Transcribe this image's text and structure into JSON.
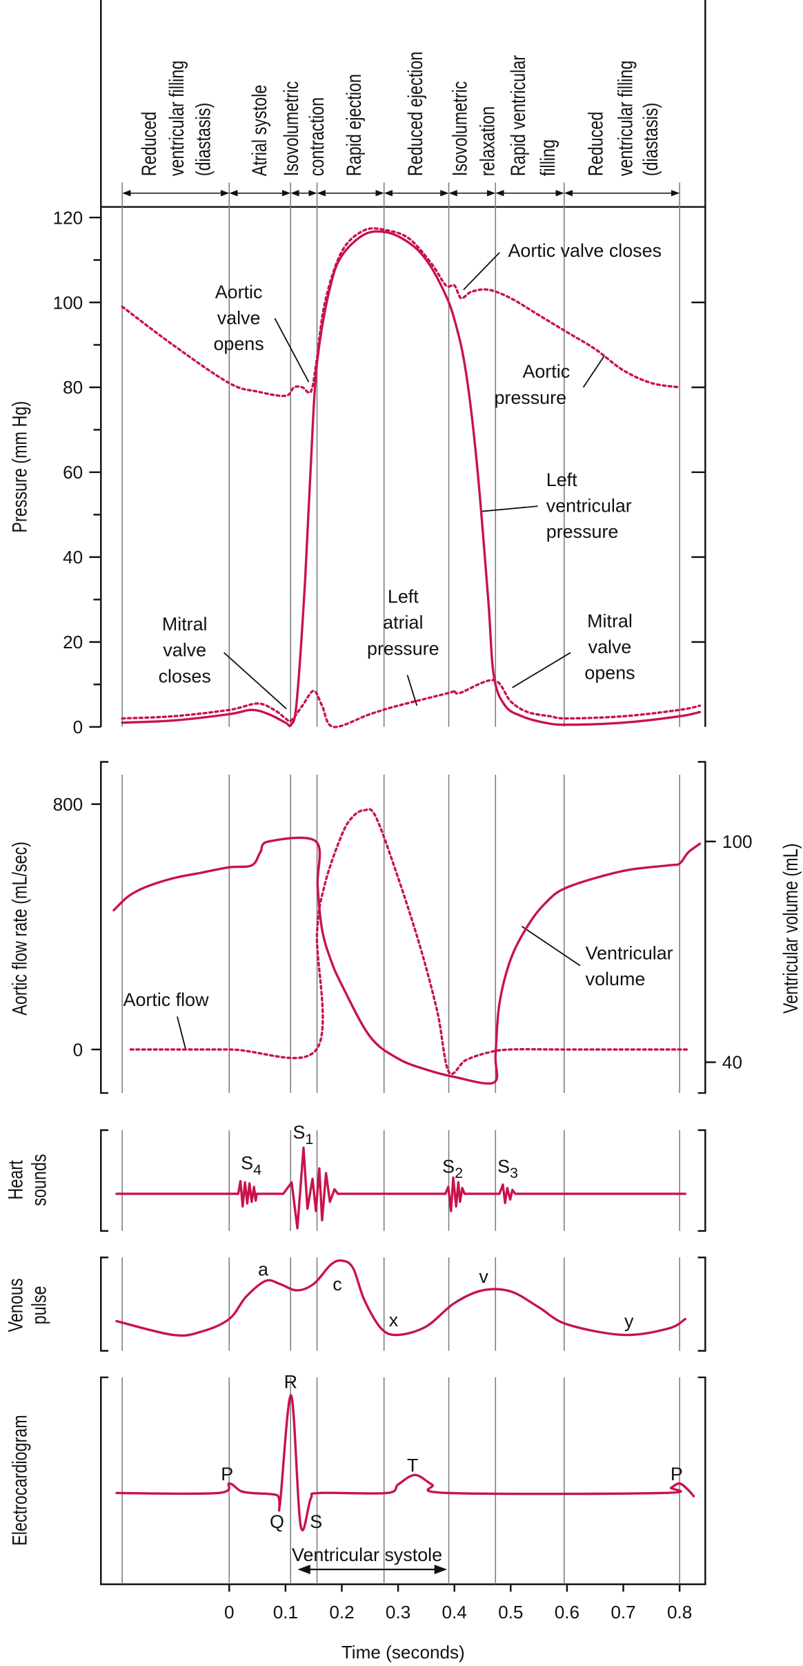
{
  "colors": {
    "trace": "#c8134b",
    "grid": "#7a7a7a",
    "axis": "#111111"
  },
  "phases": [
    {
      "lines": [
        "Reduced",
        "ventricular filling",
        "(diastasis)"
      ]
    },
    {
      "lines": [
        "Atrial systole"
      ]
    },
    {
      "lines": [
        "Isovolumetric",
        "contraction"
      ]
    },
    {
      "lines": [
        "Rapid ejection"
      ]
    },
    {
      "lines": [
        "Reduced ejection"
      ]
    },
    {
      "lines": [
        "Isovolumetric",
        "relaxation"
      ]
    },
    {
      "lines": [
        "Rapid ventricular",
        "filling"
      ]
    },
    {
      "lines": [
        "Reduced",
        "ventricular filling",
        "(diastasis)"
      ]
    }
  ],
  "phase_boundaries_s": [
    -0.19,
    0,
    0.109,
    0.156,
    0.275,
    0.39,
    0.473,
    0.595,
    0.8
  ],
  "time_axis": {
    "title": "Time (seconds)",
    "ticks": [
      "0",
      "0.1",
      "0.2",
      "0.3",
      "0.4",
      "0.5",
      "0.6",
      "0.7",
      "0.8"
    ],
    "tick_values": [
      0,
      0.1,
      0.2,
      0.3,
      0.4,
      0.5,
      0.6,
      0.7,
      0.8
    ]
  },
  "annotations": {
    "aortic_valve_closes": [
      "Aortic valve closes"
    ],
    "aortic_valve_opens": [
      "Aortic",
      "valve",
      "opens"
    ],
    "aortic_pressure": [
      "Aortic",
      "pressure"
    ],
    "lv_pressure": [
      "Left",
      "ventricular",
      "pressure"
    ],
    "la_pressure": [
      "Left",
      "atrial",
      "pressure"
    ],
    "mitral_closes": [
      "Mitral",
      "valve",
      "closes"
    ],
    "mitral_opens": [
      "Mitral",
      "valve",
      "opens"
    ],
    "aortic_flow": [
      "Aortic flow"
    ],
    "ventricular_volume": [
      "Ventricular",
      "volume"
    ],
    "ventricular_systole": "Ventricular systole"
  },
  "chart_data": [
    {
      "type": "line",
      "panel": "pressure",
      "ylabel": "Pressure (mm Hg)",
      "ylim": [
        0,
        120
      ],
      "yticks": [
        "0",
        "20",
        "40",
        "60",
        "80",
        "100",
        "120"
      ],
      "ytick_values": [
        0,
        20,
        40,
        60,
        80,
        100,
        120
      ],
      "series": [
        {
          "name": "Aortic pressure",
          "style": "dotted",
          "points": [
            [
              -0.19,
              99
            ],
            [
              -0.1,
              90
            ],
            [
              0,
              81
            ],
            [
              0.05,
              79
            ],
            [
              0.1,
              78
            ],
            [
              0.115,
              80
            ],
            [
              0.13,
              80
            ],
            [
              0.145,
              79
            ],
            [
              0.155,
              86
            ],
            [
              0.17,
              100
            ],
            [
              0.2,
              112
            ],
            [
              0.24,
              117
            ],
            [
              0.28,
              117
            ],
            [
              0.32,
              115
            ],
            [
              0.36,
              109
            ],
            [
              0.385,
              104
            ],
            [
              0.4,
              104
            ],
            [
              0.412,
              101
            ],
            [
              0.43,
              102.5
            ],
            [
              0.46,
              103
            ],
            [
              0.5,
              101
            ],
            [
              0.55,
              97
            ],
            [
              0.6,
              93
            ],
            [
              0.65,
              89
            ],
            [
              0.7,
              84
            ],
            [
              0.75,
              81
            ],
            [
              0.8,
              80
            ]
          ]
        },
        {
          "name": "Left ventricular pressure",
          "style": "solid",
          "points": [
            [
              -0.19,
              1
            ],
            [
              -0.1,
              1.5
            ],
            [
              0,
              3
            ],
            [
              0.04,
              4
            ],
            [
              0.07,
              3
            ],
            [
              0.1,
              1
            ],
            [
              0.11,
              0.5
            ],
            [
              0.12,
              6
            ],
            [
              0.135,
              35
            ],
            [
              0.15,
              75
            ],
            [
              0.16,
              90
            ],
            [
              0.18,
              104
            ],
            [
              0.2,
              111
            ],
            [
              0.24,
              116
            ],
            [
              0.28,
              116.5
            ],
            [
              0.32,
              114
            ],
            [
              0.35,
              110
            ],
            [
              0.38,
              103
            ],
            [
              0.4,
              96
            ],
            [
              0.42,
              84
            ],
            [
              0.44,
              62
            ],
            [
              0.46,
              30
            ],
            [
              0.47,
              12
            ],
            [
              0.49,
              5
            ],
            [
              0.52,
              2.5
            ],
            [
              0.56,
              1
            ],
            [
              0.6,
              0.5
            ],
            [
              0.7,
              1
            ],
            [
              0.8,
              2.5
            ],
            [
              0.836,
              3.5
            ]
          ]
        },
        {
          "name": "Left atrial pressure",
          "style": "dotted",
          "points": [
            [
              -0.19,
              2
            ],
            [
              -0.1,
              2.5
            ],
            [
              0,
              4
            ],
            [
              0.05,
              5.5
            ],
            [
              0.08,
              4
            ],
            [
              0.1,
              2
            ],
            [
              0.11,
              1.5
            ],
            [
              0.13,
              5
            ],
            [
              0.15,
              8.5
            ],
            [
              0.165,
              5
            ],
            [
              0.185,
              0
            ],
            [
              0.25,
              3
            ],
            [
              0.3,
              5
            ],
            [
              0.39,
              8
            ],
            [
              0.4,
              8.5
            ],
            [
              0.41,
              8
            ],
            [
              0.47,
              11
            ],
            [
              0.5,
              6
            ],
            [
              0.53,
              3.5
            ],
            [
              0.57,
              2.5
            ],
            [
              0.6,
              2
            ],
            [
              0.7,
              2.5
            ],
            [
              0.8,
              4
            ],
            [
              0.836,
              5
            ]
          ]
        }
      ]
    },
    {
      "type": "line",
      "panel": "flow-volume",
      "ylabel": "Aortic flow rate (mL/sec)",
      "ylabel_right": "Ventricular volume (mL)",
      "yticks": [
        "0",
        "800"
      ],
      "ytick_values": [
        0,
        800
      ],
      "yticks_right": [
        "40",
        "100"
      ],
      "ytick_right_values": [
        40,
        100
      ],
      "series": [
        {
          "name": "Aortic flow",
          "axis": "left",
          "style": "dotted",
          "points": [
            [
              -0.175,
              0
            ],
            [
              0,
              0
            ],
            [
              0.155,
              0
            ],
            [
              0.156,
              377
            ],
            [
              0.17,
              540
            ],
            [
              0.2,
              700
            ],
            [
              0.22,
              760
            ],
            [
              0.24,
              780
            ],
            [
              0.26,
              760
            ],
            [
              0.3,
              560
            ],
            [
              0.34,
              330
            ],
            [
              0.37,
              120
            ],
            [
              0.39,
              -73
            ],
            [
              0.42,
              -35
            ],
            [
              0.46,
              -10
            ],
            [
              0.5,
              0
            ],
            [
              0.6,
              0
            ],
            [
              0.816,
              0
            ]
          ]
        },
        {
          "name": "Ventricular volume",
          "axis": "right",
          "style": "solid",
          "points": [
            [
              -0.205,
              81.3
            ],
            [
              -0.18,
              85
            ],
            [
              -0.15,
              87.5
            ],
            [
              -0.1,
              90
            ],
            [
              -0.05,
              91.5
            ],
            [
              0,
              93
            ],
            [
              0.04,
              93.5
            ],
            [
              0.055,
              97
            ],
            [
              0.07,
              100
            ],
            [
              0.154,
              100
            ],
            [
              0.157,
              88
            ],
            [
              0.165,
              76
            ],
            [
              0.18,
              68
            ],
            [
              0.2,
              61
            ],
            [
              0.25,
              47
            ],
            [
              0.3,
              41
            ],
            [
              0.35,
              38
            ],
            [
              0.4,
              36
            ],
            [
              0.47,
              34.5
            ],
            [
              0.473,
              42
            ],
            [
              0.48,
              56
            ],
            [
              0.5,
              68
            ],
            [
              0.53,
              77
            ],
            [
              0.56,
              83
            ],
            [
              0.6,
              87.5
            ],
            [
              0.7,
              92
            ],
            [
              0.78,
              93.5
            ],
            [
              0.8,
              94
            ],
            [
              0.815,
              97
            ],
            [
              0.836,
              99.4
            ]
          ]
        }
      ]
    },
    {
      "type": "line",
      "panel": "heart-sounds",
      "ylabel": [
        "Heart",
        "sounds"
      ],
      "labels": [
        {
          "text": "S",
          "sub": "4"
        },
        {
          "text": "S",
          "sub": "1"
        },
        {
          "text": "S",
          "sub": "2"
        },
        {
          "text": "S",
          "sub": "3"
        }
      ],
      "sounds": [
        [
          [
            0.016,
            0
          ],
          [
            0.02,
            11.9
          ],
          [
            0.024,
            -11.9
          ],
          [
            0.028,
            10.8
          ],
          [
            0.032,
            -9.1
          ],
          [
            0.036,
            9.8
          ],
          [
            0.04,
            -7.6
          ],
          [
            0.044,
            6.5
          ],
          [
            0.047,
            -6.5
          ],
          [
            0.049,
            0
          ]
        ],
        [
          [
            0.096,
            0
          ],
          [
            0.111,
            10.8
          ],
          [
            0.121,
            -32.5
          ],
          [
            0.132,
            43.4
          ],
          [
            0.139,
            -14.1
          ],
          [
            0.148,
            14.1
          ],
          [
            0.154,
            -16.3
          ],
          [
            0.16,
            23.9
          ],
          [
            0.165,
            -24.9
          ],
          [
            0.172,
            19.5
          ],
          [
            0.179,
            -7.6
          ],
          [
            0.187,
            4.3
          ],
          [
            0.193,
            0
          ]
        ],
        [
          [
            0.384,
            0
          ],
          [
            0.389,
            6.5
          ],
          [
            0.394,
            -16.3
          ],
          [
            0.398,
            15.2
          ],
          [
            0.403,
            -11.9
          ],
          [
            0.407,
            10.8
          ],
          [
            0.41,
            -7.6
          ],
          [
            0.414,
            5.4
          ],
          [
            0.418,
            0
          ]
        ],
        [
          [
            0.48,
            0
          ],
          [
            0.486,
            8.7
          ],
          [
            0.49,
            -8.7
          ],
          [
            0.494,
            5.4
          ],
          [
            0.499,
            -5.4
          ],
          [
            0.503,
            3.7
          ],
          [
            0.508,
            0
          ]
        ]
      ]
    },
    {
      "type": "line",
      "panel": "venous-pulse",
      "ylabel": [
        "Venous",
        "pulse"
      ],
      "wave_labels": [
        "a",
        "c",
        "x",
        "v",
        "y"
      ],
      "points": [
        [
          -0.2,
          25
        ],
        [
          -0.1,
          12
        ],
        [
          -0.05,
          15
        ],
        [
          0,
          27
        ],
        [
          0.03,
          48
        ],
        [
          0.065,
          63
        ],
        [
          0.09,
          60
        ],
        [
          0.12,
          54
        ],
        [
          0.15,
          60
        ],
        [
          0.18,
          78
        ],
        [
          0.2,
          82
        ],
        [
          0.22,
          75
        ],
        [
          0.24,
          45
        ],
        [
          0.27,
          18
        ],
        [
          0.3,
          12
        ],
        [
          0.35,
          20
        ],
        [
          0.4,
          42
        ],
        [
          0.45,
          54
        ],
        [
          0.5,
          53
        ],
        [
          0.55,
          38
        ],
        [
          0.6,
          22
        ],
        [
          0.7,
          12
        ],
        [
          0.78,
          18
        ],
        [
          0.81,
          27
        ]
      ]
    },
    {
      "type": "line",
      "panel": "ecg",
      "ylabel": "Electrocardiogram",
      "wave_labels": [
        "P",
        "Q",
        "R",
        "S",
        "T",
        "P"
      ],
      "points": [
        [
          -0.2,
          0
        ],
        [
          -0.02,
          0
        ],
        [
          0,
          9
        ],
        [
          0.02,
          2
        ],
        [
          0.04,
          0
        ],
        [
          0.085,
          -2
        ],
        [
          0.09,
          -11
        ],
        [
          0.11,
          92
        ],
        [
          0.127,
          -31
        ],
        [
          0.145,
          -5
        ],
        [
          0.16,
          0
        ],
        [
          0.28,
          0
        ],
        [
          0.3,
          8
        ],
        [
          0.33,
          17
        ],
        [
          0.36,
          8
        ],
        [
          0.39,
          0
        ],
        [
          0.77,
          0
        ],
        [
          0.785,
          5
        ],
        [
          0.8,
          9
        ],
        [
          0.815,
          3
        ],
        [
          0.825,
          -3
        ]
      ]
    }
  ]
}
